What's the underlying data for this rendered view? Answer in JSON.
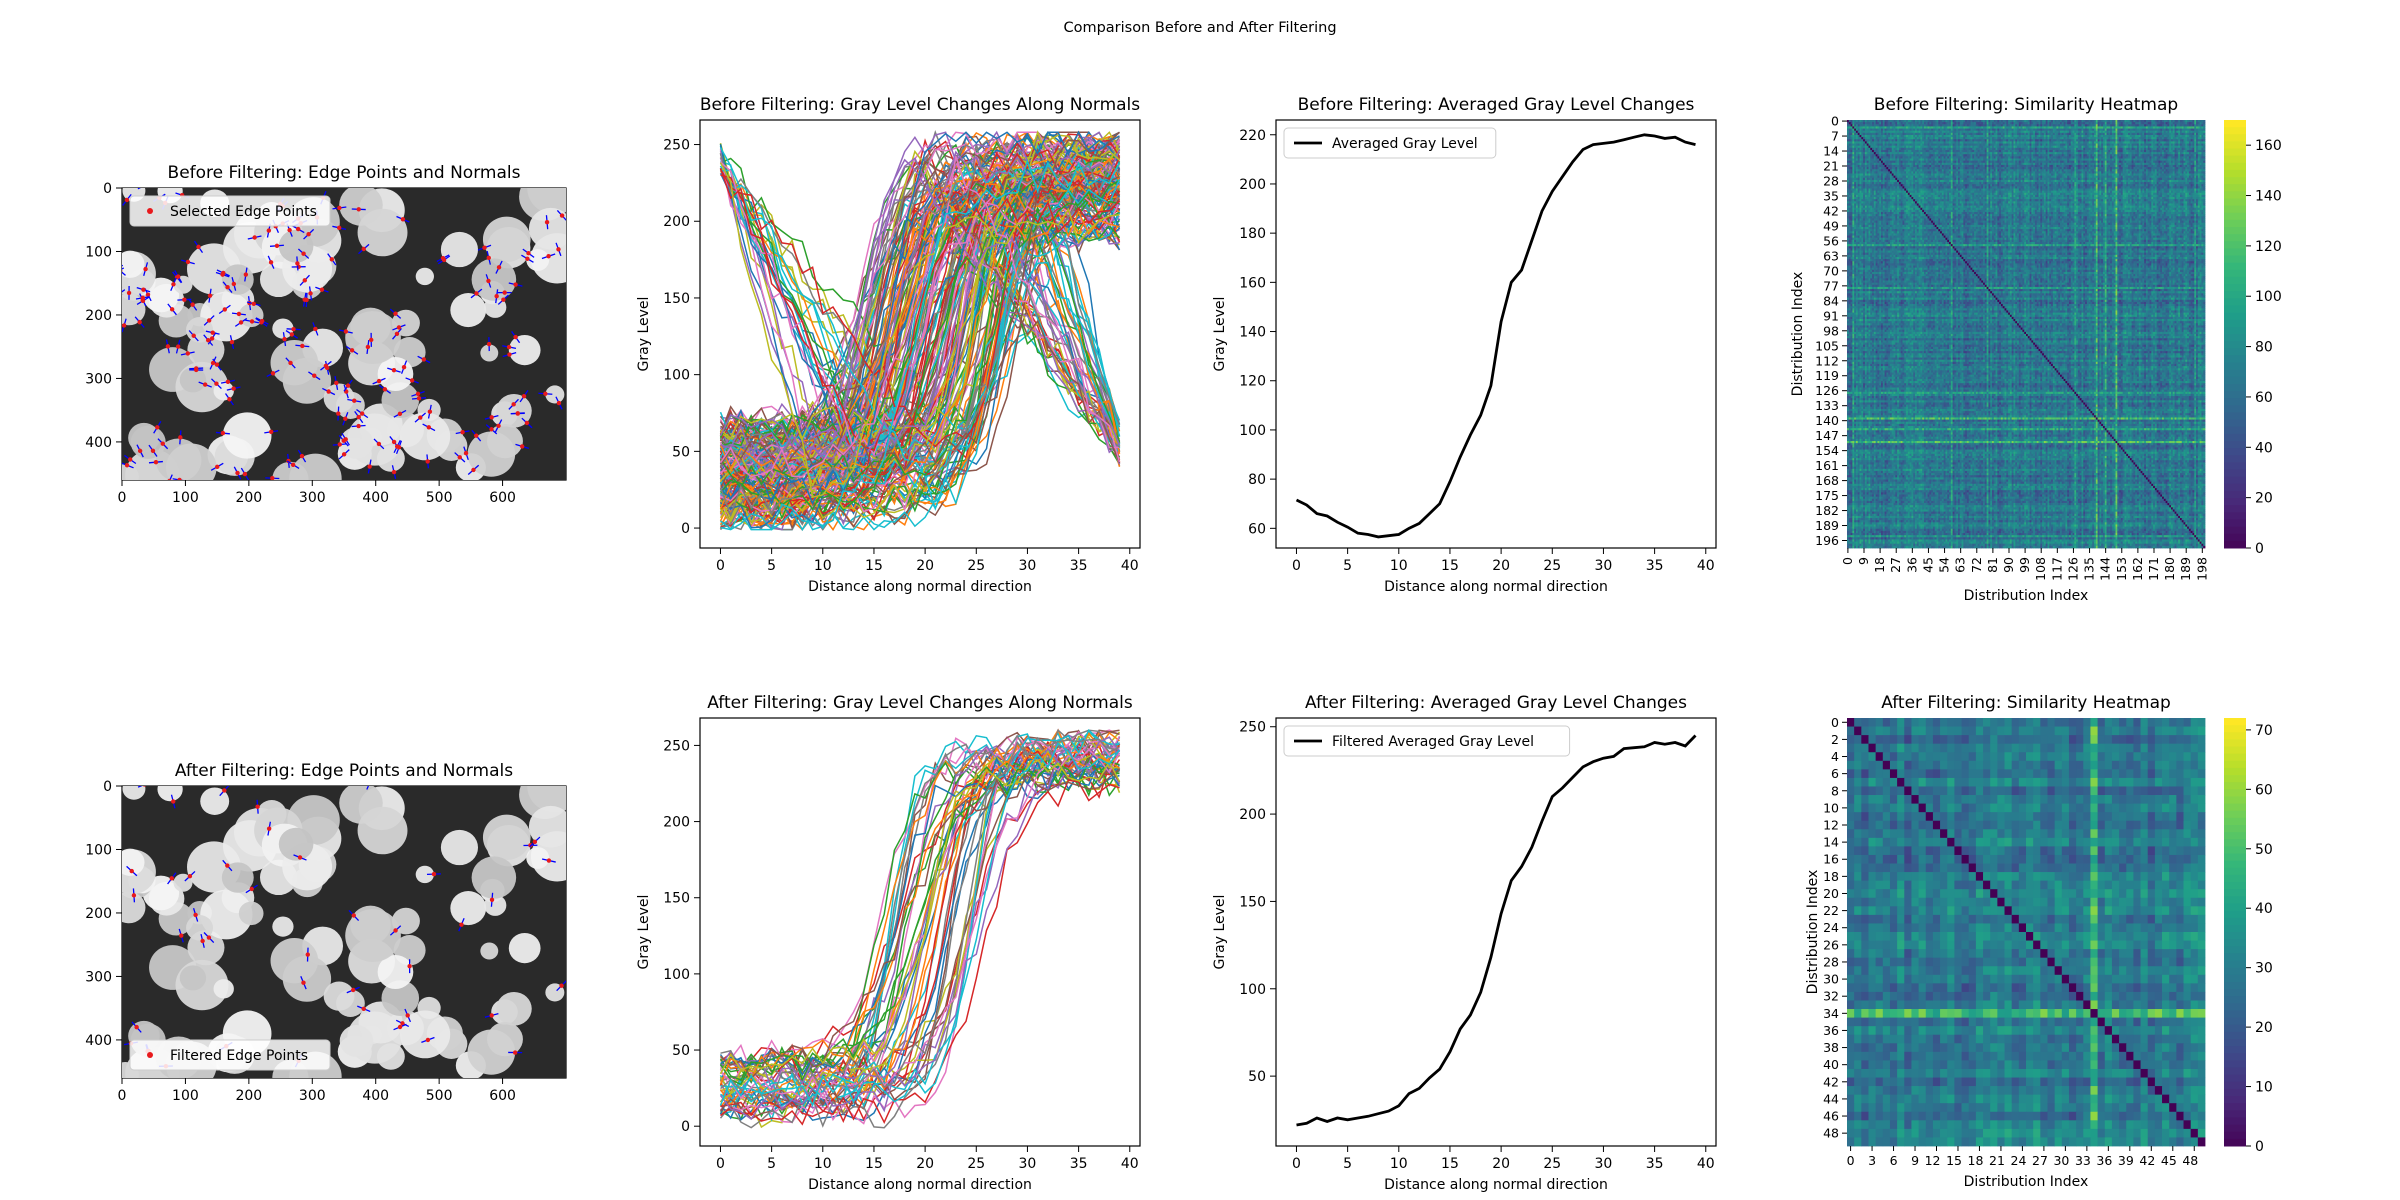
{
  "figure": {
    "suptitle": "Comparison Before and After Filtering"
  },
  "colors": {
    "tab10": [
      "#1f77b4",
      "#ff7f0e",
      "#2ca02c",
      "#d62728",
      "#9467bd",
      "#8c564b",
      "#e377c2",
      "#7f7f7f",
      "#bcbd22",
      "#17becf"
    ],
    "edge_point": "#e8191c",
    "normal_line": "#0000ff",
    "avg_line": "#000000",
    "viridis": [
      "#440154",
      "#482878",
      "#3e4989",
      "#31688e",
      "#26828e",
      "#1f9e89",
      "#35b779",
      "#6ece58",
      "#b5de2b",
      "#fde725"
    ]
  },
  "chart_data": [
    {
      "id": "before-edges",
      "type": "image-scatter",
      "title": "Before Filtering: Edge Points and Normals",
      "xlim": [
        0,
        700
      ],
      "ylim": [
        460,
        0
      ],
      "xticks": [
        0,
        100,
        200,
        300,
        400,
        500,
        600
      ],
      "yticks": [
        0,
        100,
        200,
        300,
        400
      ],
      "legend": {
        "label": "Selected Edge Points",
        "loc": "upper left"
      },
      "n_points": 200
    },
    {
      "id": "before-profiles",
      "type": "line",
      "title": "Before Filtering: Gray Level Changes Along Normals",
      "xlabel": "Distance along normal direction",
      "ylabel": "Gray Level",
      "xlim": [
        -2,
        41
      ],
      "ylim": [
        -13,
        266
      ],
      "xticks": [
        0,
        5,
        10,
        15,
        20,
        25,
        30,
        35,
        40
      ],
      "yticks": [
        0,
        50,
        100,
        150,
        200,
        250
      ],
      "n_series": 200,
      "low_level_range": [
        5,
        70
      ],
      "high_level_range": [
        190,
        255
      ],
      "transition_range": [
        13,
        29
      ],
      "mixed_series_fraction": 0.33
    },
    {
      "id": "before-average",
      "type": "line",
      "title": "Before Filtering: Averaged Gray Level Changes",
      "xlabel": "Distance along normal direction",
      "ylabel": "Gray Level",
      "xlim": [
        -2,
        41
      ],
      "ylim": [
        52,
        226
      ],
      "xticks": [
        0,
        5,
        10,
        15,
        20,
        25,
        30,
        35,
        40
      ],
      "yticks": [
        60,
        80,
        100,
        120,
        140,
        160,
        180,
        200,
        220
      ],
      "legend": {
        "label": "Averaged Gray Level",
        "loc": "upper left"
      },
      "x": [
        0,
        1,
        2,
        3,
        4,
        5,
        6,
        7,
        8,
        9,
        10,
        11,
        12,
        13,
        14,
        15,
        16,
        17,
        18,
        19,
        20,
        21,
        22,
        23,
        24,
        25,
        26,
        27,
        28,
        29,
        30,
        31,
        32,
        33,
        34,
        35,
        36,
        37,
        38,
        39
      ],
      "values": [
        71.5,
        69.5,
        66,
        65,
        62.5,
        60.5,
        58,
        57.5,
        56.5,
        57,
        57.5,
        60,
        62,
        66,
        70,
        79,
        89,
        98,
        106,
        118,
        144,
        160,
        165,
        177,
        189,
        197,
        203,
        209,
        214,
        216,
        216.5,
        217,
        218,
        219,
        220,
        219.5,
        218.5,
        219,
        217,
        216
      ]
    },
    {
      "id": "before-heatmap",
      "type": "heatmap",
      "title": "Before Filtering: Similarity Heatmap",
      "xlabel": "Distribution Index",
      "ylabel": "Distribution Index",
      "size": 200,
      "tick_step": 9,
      "ytick_step": 7,
      "vmin": 0,
      "vmax": 170,
      "colorbar_ticks": [
        0,
        20,
        40,
        60,
        80,
        100,
        120,
        140,
        160
      ]
    },
    {
      "id": "after-edges",
      "type": "image-scatter",
      "title": "After Filtering: Edge Points and Normals",
      "xlim": [
        0,
        700
      ],
      "ylim": [
        460,
        0
      ],
      "xticks": [
        0,
        100,
        200,
        300,
        400,
        500,
        600
      ],
      "yticks": [
        0,
        100,
        200,
        300,
        400
      ],
      "legend": {
        "label": "Filtered Edge Points",
        "loc": "lower left"
      },
      "n_points": 50
    },
    {
      "id": "after-profiles",
      "type": "line",
      "title": "After Filtering: Gray Level Changes Along Normals",
      "xlabel": "Distance along normal direction",
      "ylabel": "Gray Level",
      "xlim": [
        -2,
        41
      ],
      "ylim": [
        -13,
        268
      ],
      "xticks": [
        0,
        5,
        10,
        15,
        20,
        25,
        30,
        35,
        40
      ],
      "yticks": [
        0,
        50,
        100,
        150,
        200,
        250
      ],
      "n_series": 50,
      "low_level_range": [
        8,
        45
      ],
      "high_level_range": [
        225,
        255
      ],
      "transition_range": [
        15,
        26
      ],
      "mixed_series_fraction": 0
    },
    {
      "id": "after-average",
      "type": "line",
      "title": "After Filtering: Averaged Gray Level Changes",
      "xlabel": "Distance along normal direction",
      "ylabel": "Gray Level",
      "xlim": [
        -2,
        41
      ],
      "ylim": [
        10,
        255
      ],
      "xticks": [
        0,
        5,
        10,
        15,
        20,
        25,
        30,
        35,
        40
      ],
      "yticks": [
        50,
        100,
        150,
        200,
        250
      ],
      "legend": {
        "label": "Filtered Averaged Gray Level",
        "loc": "upper left"
      },
      "x": [
        0,
        1,
        2,
        3,
        4,
        5,
        6,
        7,
        8,
        9,
        10,
        11,
        12,
        13,
        14,
        15,
        16,
        17,
        18,
        19,
        20,
        21,
        22,
        23,
        24,
        25,
        26,
        27,
        28,
        29,
        30,
        31,
        32,
        33,
        34,
        35,
        36,
        37,
        38,
        39
      ],
      "values": [
        22,
        23,
        26,
        24,
        26,
        25,
        26,
        27,
        28.5,
        30,
        33,
        40,
        43,
        49,
        54,
        64,
        77,
        85,
        98,
        118,
        143,
        162,
        170,
        181,
        196,
        210,
        215,
        221,
        227,
        230,
        232,
        233,
        237.5,
        238,
        238.5,
        241,
        240,
        241,
        239,
        245
      ]
    },
    {
      "id": "after-heatmap",
      "type": "heatmap",
      "title": "After Filtering: Similarity Heatmap",
      "xlabel": "Distribution Index",
      "ylabel": "Distribution Index",
      "size": 50,
      "tick_step": 3,
      "ytick_step": 2,
      "vmin": 0,
      "vmax": 72,
      "colorbar_ticks": [
        0,
        10,
        20,
        30,
        40,
        50,
        60,
        70
      ]
    }
  ]
}
